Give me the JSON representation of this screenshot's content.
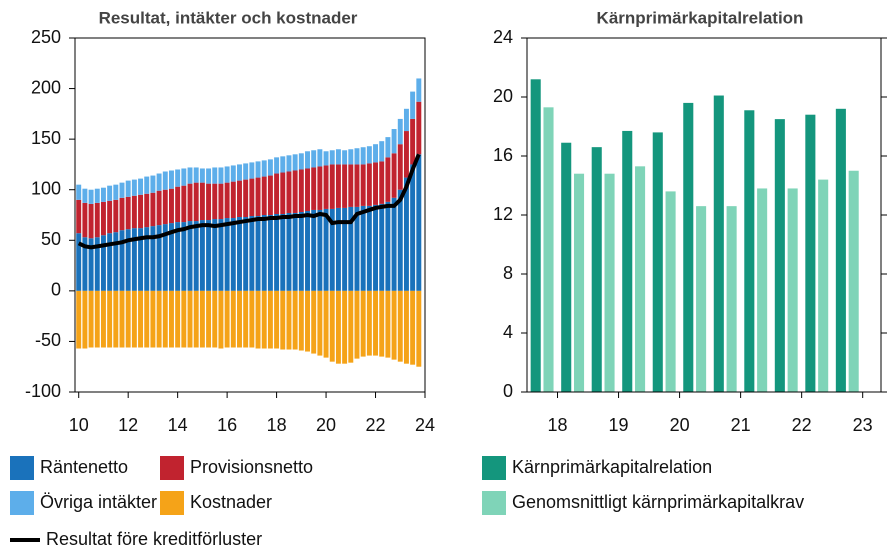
{
  "chart_data": [
    {
      "type": "bar",
      "stacked": true,
      "title": "Resultat, intäkter och kostnader",
      "x": [
        10,
        10.25,
        10.5,
        10.75,
        11,
        11.25,
        11.5,
        11.75,
        12,
        12.25,
        12.5,
        12.75,
        13,
        13.25,
        13.5,
        13.75,
        14,
        14.25,
        14.5,
        14.75,
        15,
        15.25,
        15.5,
        15.75,
        16,
        16.25,
        16.5,
        16.75,
        17,
        17.25,
        17.5,
        17.75,
        18,
        18.25,
        18.5,
        18.75,
        19,
        19.25,
        19.5,
        19.75,
        20,
        20.25,
        20.5,
        20.75,
        21,
        21.25,
        21.5,
        21.75,
        22,
        22.25,
        22.5,
        22.75,
        23,
        23.25,
        23.5,
        23.75
      ],
      "xlim": [
        9.85,
        24
      ],
      "xticks": [
        10,
        12,
        14,
        16,
        18,
        20,
        22,
        24
      ],
      "ylim": [
        -100,
        250
      ],
      "yticks": [
        -100,
        -50,
        0,
        50,
        100,
        150,
        200,
        250
      ],
      "series": [
        {
          "name": "Räntenetto",
          "color": "#1a72bb",
          "values": [
            57,
            53,
            52,
            53,
            55,
            57,
            58,
            60,
            61,
            62,
            62,
            63,
            64,
            65,
            66,
            67,
            68,
            68,
            69,
            69,
            70,
            70,
            71,
            71,
            72,
            72,
            73,
            73,
            74,
            74,
            75,
            75,
            76,
            76,
            77,
            77,
            78,
            79,
            80,
            80,
            81,
            81,
            82,
            82,
            83,
            83,
            84,
            84,
            85,
            86,
            88,
            92,
            100,
            112,
            125,
            135
          ]
        },
        {
          "name": "Provisionsnetto",
          "color": "#c1232f",
          "values": [
            33,
            34,
            34,
            34,
            33,
            32,
            32,
            32,
            32,
            32,
            33,
            33,
            33,
            34,
            34,
            34,
            35,
            36,
            37,
            38,
            37,
            36,
            35,
            35,
            35,
            36,
            36,
            37,
            37,
            38,
            38,
            39,
            40,
            41,
            41,
            42,
            42,
            42,
            42,
            43,
            43,
            44,
            43,
            43,
            42,
            42,
            41,
            42,
            42,
            42,
            44,
            44,
            45,
            46,
            45,
            52
          ]
        },
        {
          "name": "Övriga intäkter",
          "color": "#5daeea",
          "values": [
            15,
            14,
            14,
            14,
            14,
            15,
            15,
            15,
            16,
            16,
            16,
            17,
            17,
            17,
            18,
            18,
            17,
            17,
            16,
            15,
            14,
            15,
            16,
            16,
            16,
            16,
            16,
            16,
            16,
            16,
            16,
            16,
            16,
            16,
            16,
            16,
            16,
            17,
            17,
            17,
            14,
            14,
            15,
            14,
            15,
            16,
            17,
            17,
            18,
            20,
            20,
            24,
            25,
            22,
            27,
            23
          ]
        },
        {
          "name": "Kostnader",
          "color": "#f5a318",
          "values": [
            -57,
            -57,
            -56,
            -56,
            -56,
            -56,
            -56,
            -56,
            -56,
            -56,
            -56,
            -56,
            -56,
            -56,
            -56,
            -56,
            -56,
            -56,
            -56,
            -56,
            -56,
            -56,
            -56,
            -57,
            -56,
            -56,
            -56,
            -56,
            -56,
            -57,
            -57,
            -57,
            -57,
            -58,
            -58,
            -58,
            -59,
            -60,
            -62,
            -64,
            -66,
            -70,
            -72,
            -72,
            -71,
            -67,
            -65,
            -64,
            -64,
            -65,
            -66,
            -68,
            -70,
            -72,
            -73,
            -75
          ]
        },
        {
          "name": "Resultat före kreditförluster",
          "type": "line",
          "color": "#000000",
          "values": [
            47,
            44,
            43,
            44,
            45,
            46,
            47,
            48,
            50,
            51,
            52,
            53,
            53,
            54,
            56,
            58,
            60,
            61,
            63,
            64,
            65,
            65,
            64,
            65,
            66,
            67,
            68,
            69,
            70,
            71,
            71,
            72,
            72,
            73,
            73,
            74,
            74,
            75,
            74,
            76,
            75,
            67,
            68,
            68,
            68,
            76,
            78,
            80,
            82,
            83,
            84,
            84,
            90,
            103,
            120,
            135
          ]
        }
      ]
    },
    {
      "type": "bar",
      "stacked": false,
      "title": "Kärnprimärkapitalrelation",
      "x": [
        17.75,
        18.25,
        18.75,
        19.25,
        19.75,
        20.25,
        20.75,
        21.25,
        21.75,
        22.25,
        22.75
      ],
      "xlim": [
        17.5,
        23.3
      ],
      "xticks": [
        18,
        19,
        20,
        21,
        22,
        23
      ],
      "ylim": [
        0,
        24
      ],
      "yticks": [
        0,
        4,
        8,
        12,
        16,
        20,
        24
      ],
      "series": [
        {
          "name": "Kärnprimärkapitalrelation",
          "color": "#14967d",
          "values": [
            21.2,
            16.9,
            16.6,
            17.7,
            17.6,
            19.6,
            20.1,
            19.1,
            18.5,
            18.8,
            19.2
          ]
        },
        {
          "name": "Genomsnittligt kärnprimärkapitalkrav",
          "color": "#7fd4b8",
          "values": [
            19.3,
            14.8,
            14.8,
            15.3,
            13.6,
            12.6,
            12.6,
            13.8,
            13.8,
            14.4,
            15.0
          ]
        }
      ]
    }
  ]
}
